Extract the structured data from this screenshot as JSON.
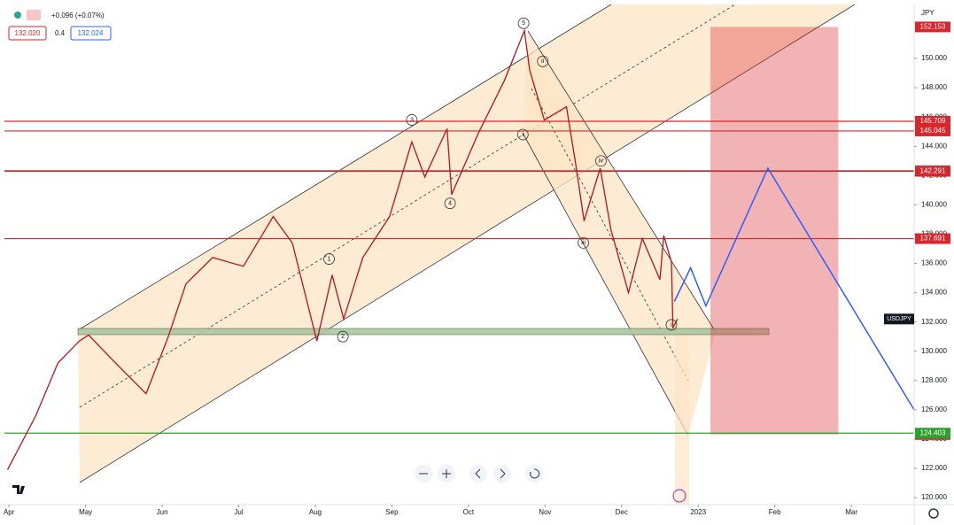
{
  "chart_data": {
    "type": "line",
    "currency": "JPY",
    "header": {
      "change": "+0.096 (+0.07%)",
      "bid": "132.020",
      "spread": "0.4",
      "ask": "132.024"
    },
    "x": [
      -0.02,
      0.35,
      0.64,
      0.92,
      1.04,
      1.39,
      1.79,
      2.08,
      2.31,
      2.66,
      3.06,
      3.45,
      3.7,
      4.02,
      4.22,
      4.37,
      4.62,
      4.97,
      5.26,
      5.43,
      5.72,
      5.78,
      6.13,
      6.47,
      6.73,
      6.8,
      6.99,
      7.28,
      7.4,
      7.51,
      7.72,
      7.86,
      8.09,
      8.27,
      8.5,
      8.55,
      8.65,
      8.67,
      8.73
    ],
    "series": [
      {
        "name": "USDJPY",
        "color": "#b0161d",
        "values": [
          121.9,
          125.6,
          129.2,
          130.7,
          131.1,
          129.2,
          127.1,
          131.0,
          134.6,
          136.4,
          135.8,
          139.2,
          137.4,
          130.7,
          135.2,
          132.2,
          136.4,
          139.2,
          144.3,
          141.9,
          145.2,
          140.7,
          144.9,
          148.5,
          151.9,
          149.2,
          145.8,
          146.7,
          142.8,
          138.9,
          142.5,
          138.3,
          134.0,
          137.7,
          134.9,
          137.9,
          136.1,
          131.6,
          132.2
        ]
      }
    ],
    "projection": {
      "color": "#2f5bff",
      "x": [
        8.69,
        8.9,
        9.1,
        9.91,
        11.82
      ],
      "values": [
        133.4,
        135.7,
        133.1,
        142.5,
        126.0
      ]
    },
    "levels": [
      {
        "value": 145.709,
        "label": "145.709",
        "color": "#d9262c"
      },
      {
        "value": 145.045,
        "label": "145.045",
        "color": "#d9262c"
      },
      {
        "value": 142.337,
        "label": "142.337",
        "color": "#787b86"
      },
      {
        "value": 142.291,
        "label": "142.291",
        "color": "#d9262c"
      },
      {
        "value": 137.691,
        "label": "137.691",
        "color": "#d9262c"
      },
      {
        "value": 124.403,
        "label": "124.403",
        "color": "#2ca02c"
      }
    ],
    "box": {
      "top": 152.153,
      "top_label": "152.153",
      "bottom": 124.311,
      "bottom_label": "124.311",
      "x": [
        9.16,
        10.83
      ],
      "color": "#d9262c"
    },
    "annotations": [
      {
        "text": "5",
        "x": 6.72,
        "y": 152.4
      },
      {
        "text": "ii",
        "x": 6.97,
        "y": 149.8
      },
      {
        "text": "3",
        "x": 5.26,
        "y": 145.8
      },
      {
        "text": "i",
        "x": 6.71,
        "y": 144.8
      },
      {
        "text": "iv",
        "x": 7.73,
        "y": 143.0
      },
      {
        "text": "4",
        "x": 5.76,
        "y": 140.1
      },
      {
        "text": "1",
        "x": 4.18,
        "y": 136.3
      },
      {
        "text": "iii",
        "x": 7.5,
        "y": 137.4
      },
      {
        "text": "2",
        "x": 4.36,
        "y": 131.0
      },
      {
        "text": "i",
        "x": 8.65,
        "y": 131.8
      }
    ],
    "xlim": [
      -0.06,
      11.82
    ],
    "ylim": [
      119.52,
      153.69
    ],
    "xticks": [
      {
        "value": 0,
        "label": "Apr"
      },
      {
        "value": 1,
        "label": "May"
      },
      {
        "value": 2,
        "label": "Jun"
      },
      {
        "value": 3,
        "label": "Jul"
      },
      {
        "value": 4,
        "label": "Aug"
      },
      {
        "value": 5,
        "label": "Sep"
      },
      {
        "value": 6,
        "label": "Oct"
      },
      {
        "value": 7,
        "label": "Nov"
      },
      {
        "value": 8,
        "label": "Dec"
      },
      {
        "value": 9,
        "label": "2023"
      },
      {
        "value": 10,
        "label": "Feb"
      },
      {
        "value": 11,
        "label": "Mar"
      }
    ],
    "yticks": [
      {
        "value": 120,
        "label": "120.000"
      },
      {
        "value": 122,
        "label": "122.000"
      },
      {
        "value": 124,
        "label": "124.000"
      },
      {
        "value": 126,
        "label": "126.000"
      },
      {
        "value": 128,
        "label": "128.000"
      },
      {
        "value": 130,
        "label": "130.000"
      },
      {
        "value": 132,
        "label": "132.000"
      },
      {
        "value": 134,
        "label": "134.000"
      },
      {
        "value": 136,
        "label": "136.000"
      },
      {
        "value": 138,
        "label": "138.000"
      },
      {
        "value": 140,
        "label": "140.000"
      },
      {
        "value": 142,
        "label": "142.000"
      },
      {
        "value": 144,
        "label": "144.000"
      },
      {
        "value": 146,
        "label": "146.000"
      },
      {
        "value": 148,
        "label": "148.000"
      },
      {
        "value": 150,
        "label": "150.000"
      }
    ]
  }
}
